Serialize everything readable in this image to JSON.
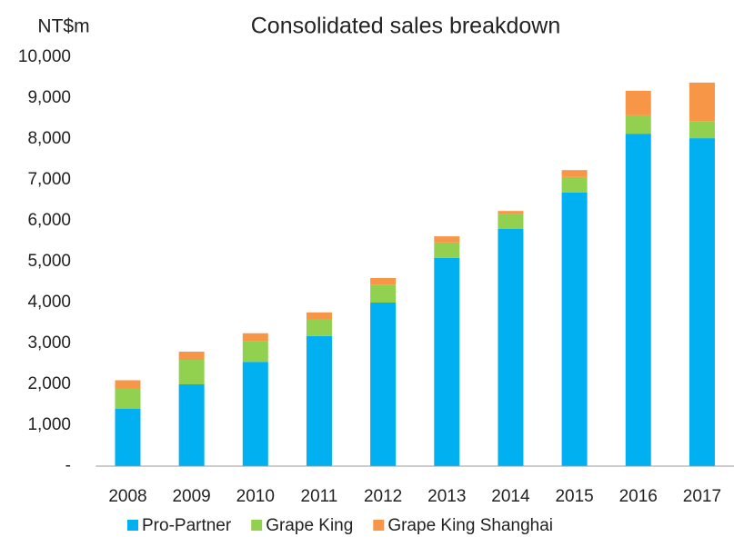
{
  "chart_data": {
    "type": "bar",
    "stacked": true,
    "title": "Consolidated sales breakdown",
    "y_label": "NT$m",
    "categories": [
      "2008",
      "2009",
      "2010",
      "2011",
      "2012",
      "2013",
      "2014",
      "2015",
      "2016",
      "2017"
    ],
    "series": [
      {
        "name": "Pro-Partner",
        "color": "#00b0f0",
        "values": [
          1400,
          2000,
          2550,
          3180,
          4000,
          5090,
          5800,
          6690,
          8130,
          8020
        ]
      },
      {
        "name": "Grape King",
        "color": "#92d050",
        "values": [
          500,
          600,
          500,
          420,
          440,
          380,
          360,
          380,
          450,
          420
        ]
      },
      {
        "name": "Grape King Shanghai",
        "color": "#f79646",
        "values": [
          200,
          200,
          200,
          160,
          160,
          150,
          80,
          170,
          600,
          940
        ]
      }
    ],
    "ylim": [
      0,
      10000
    ],
    "yticks": [
      {
        "value": 0,
        "label": "-"
      },
      {
        "value": 1000,
        "label": "1,000"
      },
      {
        "value": 2000,
        "label": "2,000"
      },
      {
        "value": 3000,
        "label": "3,000"
      },
      {
        "value": 4000,
        "label": "4,000"
      },
      {
        "value": 5000,
        "label": "5,000"
      },
      {
        "value": 6000,
        "label": "6,000"
      },
      {
        "value": 7000,
        "label": "7,000"
      },
      {
        "value": 8000,
        "label": "8,000"
      },
      {
        "value": 9000,
        "label": "9,000"
      },
      {
        "value": 10000,
        "label": "10,000"
      }
    ],
    "grid": false,
    "legend": "bottom"
  }
}
